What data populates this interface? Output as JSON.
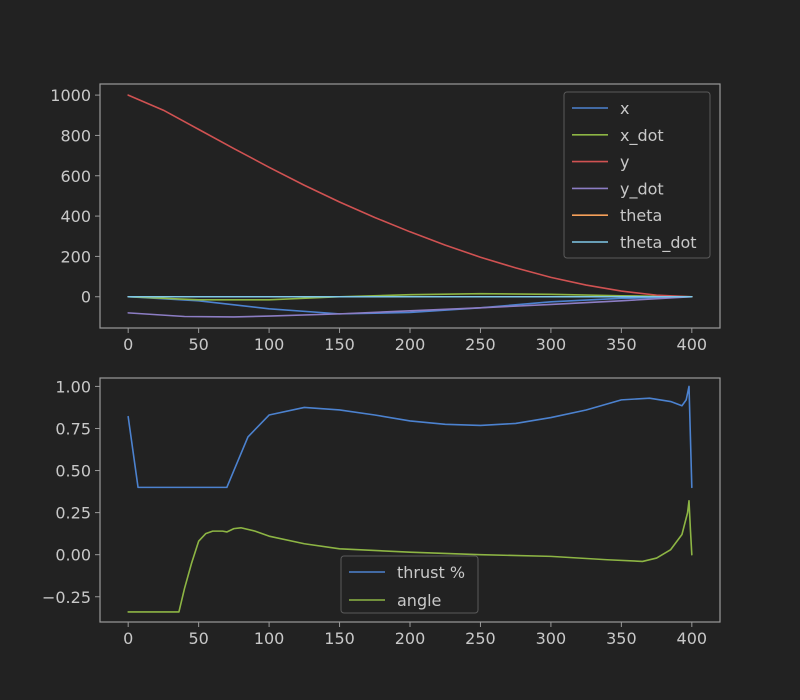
{
  "chart_data": [
    {
      "type": "line",
      "xlim": [
        -20,
        420
      ],
      "ylim": [
        -155,
        1055
      ],
      "xticks": [
        0,
        50,
        100,
        150,
        200,
        250,
        300,
        350,
        400
      ],
      "yticks": [
        0,
        200,
        400,
        600,
        800,
        1000
      ],
      "xtick_labels": [
        "0",
        "50",
        "100",
        "150",
        "200",
        "250",
        "300",
        "350",
        "400"
      ],
      "ytick_labels": [
        "0",
        "200",
        "400",
        "600",
        "800",
        "1000"
      ],
      "grid": false,
      "legend": {
        "position": "upper right"
      },
      "series": [
        {
          "name": "x",
          "color": "#4c82cf",
          "points": [
            [
              0,
              0
            ],
            [
              50,
              -20
            ],
            [
              100,
              -60
            ],
            [
              150,
              -85
            ],
            [
              200,
              -78
            ],
            [
              250,
              -55
            ],
            [
              300,
              -25
            ],
            [
              350,
              -8
            ],
            [
              400,
              0
            ]
          ]
        },
        {
          "name": "x_dot",
          "color": "#8db544",
          "points": [
            [
              0,
              0
            ],
            [
              50,
              -15
            ],
            [
              100,
              -15
            ],
            [
              150,
              0
            ],
            [
              200,
              10
            ],
            [
              250,
              15
            ],
            [
              300,
              12
            ],
            [
              350,
              5
            ],
            [
              400,
              0
            ]
          ]
        },
        {
          "name": "y",
          "color": "#d05252",
          "points": [
            [
              0,
              1000
            ],
            [
              25,
              925
            ],
            [
              50,
              830
            ],
            [
              75,
              735
            ],
            [
              100,
              642
            ],
            [
              125,
              553
            ],
            [
              150,
              470
            ],
            [
              175,
              393
            ],
            [
              200,
              322
            ],
            [
              225,
              256
            ],
            [
              250,
              196
            ],
            [
              275,
              143
            ],
            [
              300,
              96
            ],
            [
              325,
              58
            ],
            [
              350,
              28
            ],
            [
              375,
              8
            ],
            [
              400,
              0
            ]
          ]
        },
        {
          "name": "y_dot",
          "color": "#8c7dc4",
          "points": [
            [
              0,
              -80
            ],
            [
              40,
              -98
            ],
            [
              75,
              -100
            ],
            [
              100,
              -96
            ],
            [
              150,
              -85
            ],
            [
              200,
              -70
            ],
            [
              250,
              -55
            ],
            [
              300,
              -38
            ],
            [
              350,
              -20
            ],
            [
              400,
              0
            ]
          ]
        },
        {
          "name": "theta",
          "color": "#f5a05a",
          "points": [
            [
              0,
              0
            ],
            [
              100,
              0
            ],
            [
              200,
              0
            ],
            [
              300,
              0
            ],
            [
              400,
              0
            ]
          ]
        },
        {
          "name": "theta_dot",
          "color": "#7fc8e8",
          "points": [
            [
              0,
              0
            ],
            [
              100,
              0
            ],
            [
              200,
              0
            ],
            [
              300,
              0
            ],
            [
              400,
              0
            ]
          ]
        }
      ]
    },
    {
      "type": "line",
      "xlim": [
        -20,
        420
      ],
      "ylim": [
        -0.4,
        1.05
      ],
      "xticks": [
        0,
        50,
        100,
        150,
        200,
        250,
        300,
        350,
        400
      ],
      "yticks": [
        -0.25,
        0,
        0.25,
        0.5,
        0.75,
        1.0
      ],
      "xtick_labels": [
        "0",
        "50",
        "100",
        "150",
        "200",
        "250",
        "300",
        "350",
        "400"
      ],
      "ytick_labels": [
        "−0.25",
        "0.00",
        "0.25",
        "0.50",
        "0.75",
        "1.00"
      ],
      "grid": false,
      "legend": {
        "position": "lower center"
      },
      "series": [
        {
          "name": "thrust %",
          "color": "#4c82cf",
          "points": [
            [
              0,
              0.82
            ],
            [
              7,
              0.4
            ],
            [
              70,
              0.4
            ],
            [
              75,
              0.5
            ],
            [
              85,
              0.7
            ],
            [
              100,
              0.83
            ],
            [
              125,
              0.875
            ],
            [
              150,
              0.86
            ],
            [
              175,
              0.83
            ],
            [
              200,
              0.795
            ],
            [
              225,
              0.775
            ],
            [
              250,
              0.768
            ],
            [
              275,
              0.78
            ],
            [
              300,
              0.815
            ],
            [
              325,
              0.86
            ],
            [
              350,
              0.92
            ],
            [
              370,
              0.93
            ],
            [
              385,
              0.91
            ],
            [
              393,
              0.885
            ],
            [
              396,
              0.92
            ],
            [
              398,
              1.0
            ],
            [
              399,
              0.7
            ],
            [
              400,
              0.4
            ]
          ]
        },
        {
          "name": "angle",
          "color": "#8db544",
          "points": [
            [
              0,
              -0.34
            ],
            [
              36,
              -0.34
            ],
            [
              40,
              -0.2
            ],
            [
              45,
              -0.05
            ],
            [
              50,
              0.08
            ],
            [
              55,
              0.125
            ],
            [
              60,
              0.14
            ],
            [
              67,
              0.14
            ],
            [
              70,
              0.135
            ],
            [
              75,
              0.155
            ],
            [
              80,
              0.16
            ],
            [
              90,
              0.14
            ],
            [
              100,
              0.11
            ],
            [
              125,
              0.065
            ],
            [
              150,
              0.035
            ],
            [
              200,
              0.015
            ],
            [
              250,
              0.0
            ],
            [
              300,
              -0.01
            ],
            [
              340,
              -0.03
            ],
            [
              365,
              -0.04
            ],
            [
              375,
              -0.02
            ],
            [
              385,
              0.03
            ],
            [
              393,
              0.12
            ],
            [
              397,
              0.25
            ],
            [
              398,
              0.32
            ],
            [
              399,
              0.15
            ],
            [
              400,
              0.0
            ]
          ]
        }
      ]
    }
  ]
}
